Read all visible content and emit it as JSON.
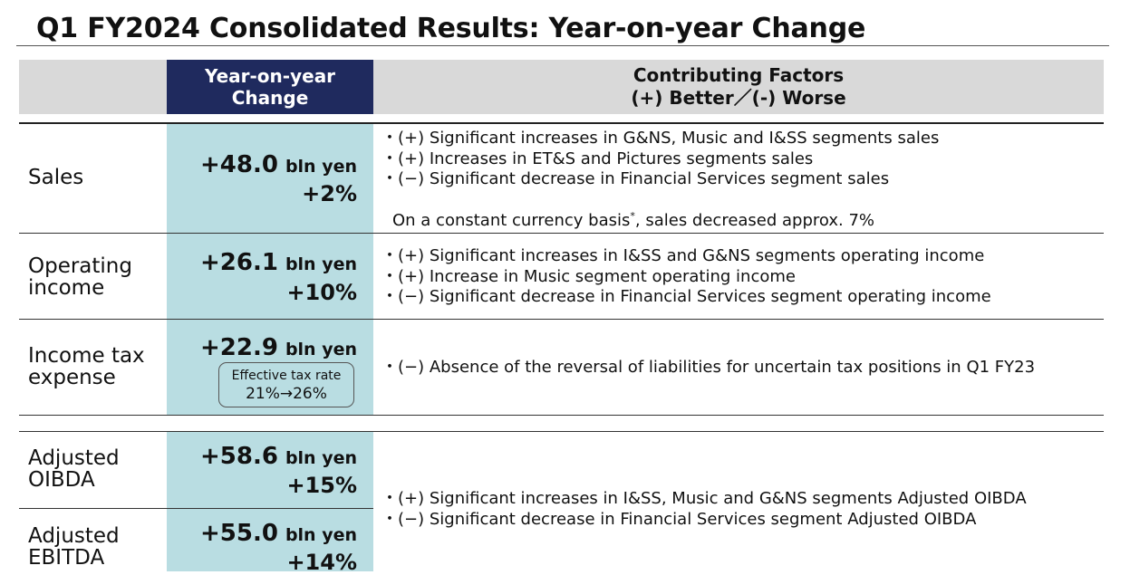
{
  "title": "Q1 FY2024 Consolidated Results: Year-on-year Change",
  "header": {
    "yoy": "Year-on-year Change",
    "factors_line1": "Contributing Factors",
    "factors_line2": "(+) Better／(-) Worse"
  },
  "rows": {
    "sales": {
      "label": "Sales",
      "value": "+48.0",
      "unit": "bln yen",
      "pct": "+2%",
      "factors": [
        "・(+) Significant increases in G&NS, Music and I&SS segments sales",
        "・(+) Increases in ET&S and Pictures segments sales",
        "・(−) Significant decrease in Financial Services segment sales"
      ],
      "note": "On a constant currency basis",
      "note_mark": "*",
      "note_rest": ", sales decreased approx. 7%"
    },
    "operating_income": {
      "label_line1": "Operating",
      "label_line2": "income",
      "value": "+26.1",
      "unit": "bln yen",
      "pct": "+10%",
      "factors": [
        "・(+) Significant increases in I&SS and G&NS segments operating income",
        "・(+) Increase in Music segment operating income",
        "・(−) Significant decrease in Financial Services segment operating income"
      ]
    },
    "income_tax": {
      "label_line1": "Income tax",
      "label_line2": "expense",
      "value": "+22.9",
      "unit": "bln yen",
      "rate_label": "Effective tax rate",
      "rate_value": "21%→26%",
      "factors": [
        "・(−) Absence of the reversal of liabilities for uncertain tax positions in Q1 FY23"
      ]
    },
    "adj_oibda": {
      "label_line1": "Adjusted",
      "label_line2": "OIBDA",
      "value": "+58.6",
      "unit": "bln yen",
      "pct": "+15%"
    },
    "adj_ebitda": {
      "label_line1": "Adjusted",
      "label_line2": "EBITDA",
      "value": "+55.0",
      "unit": "bln yen",
      "pct": "+14%"
    },
    "adjusted_factors": [
      "・(+) Significant increases in I&SS, Music and G&NS segments Adjusted OIBDA",
      "・(−) Significant decrease in Financial Services segment Adjusted OIBDA"
    ]
  }
}
